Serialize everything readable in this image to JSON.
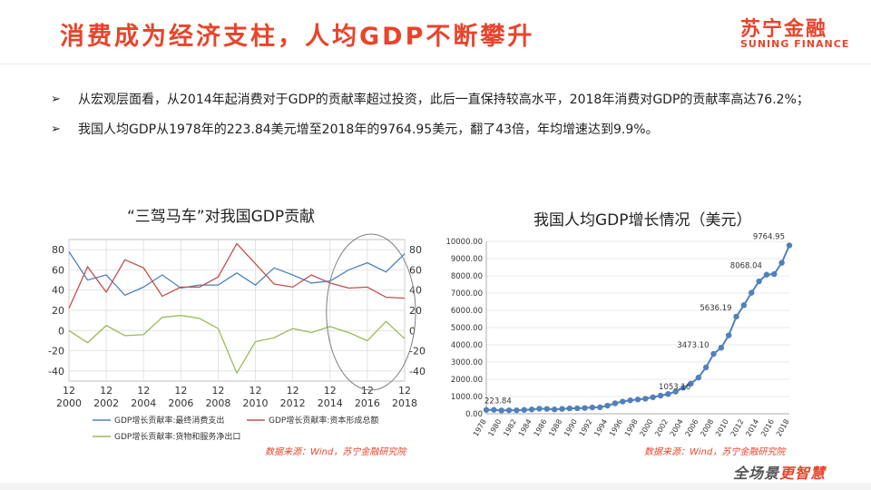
{
  "header": {
    "title": "消费成为经济支柱，人均GDP不断攀升",
    "logo_cn": "苏宁金融",
    "logo_en": "SUNING FINANCE"
  },
  "bullets": [
    "从宏观层面看，从2014年起消费对于GDP的贡献率超过投资，此后一直保持较高水平，2018年消费对GDP的贡献率高达76.2%；",
    "我国人均GDP从1978年的223.84美元增至2018年的9764.95美元，翻了43倍，年均增速达到9.9%。"
  ],
  "bullet_marker": "➢",
  "footer": {
    "slogan_a": "全场景",
    "slogan_b": "更智慧",
    "bottom_color": "#e8442b"
  },
  "chart_data": [
    {
      "type": "line",
      "title": "“三驾马车”对我国GDP贡献",
      "source": "数据来源：Wind，苏宁金融研究院",
      "x": [
        2000,
        2001,
        2002,
        2003,
        2004,
        2005,
        2006,
        2007,
        2008,
        2009,
        2010,
        2011,
        2012,
        2013,
        2014,
        2015,
        2016,
        2017,
        2018
      ],
      "x_tick_top": [
        "12",
        "12",
        "12",
        "12",
        "12",
        "12",
        "12",
        "12",
        "12",
        "12"
      ],
      "x_tick_bottom": [
        "2000",
        "2002",
        "2004",
        "2006",
        "2008",
        "2010",
        "2012",
        "2014",
        "2016",
        "2018"
      ],
      "yticks_left": [
        "80",
        "60",
        "40",
        "20",
        "0",
        "-20",
        "-40"
      ],
      "yticks_right": [
        "80",
        "60",
        "40",
        "20",
        "0",
        "-20",
        "-40"
      ],
      "ylim": [
        -50,
        90
      ],
      "grid": true,
      "legend_position": "bottom",
      "series": [
        {
          "name": "GDP增长贡献率:最终消费支出",
          "color": "#4f81bd",
          "values": [
            78,
            50,
            55,
            35,
            43,
            55,
            42,
            45,
            45,
            57,
            45,
            62,
            55,
            47,
            49,
            60,
            67,
            58,
            76
          ]
        },
        {
          "name": "GDP增长贡献率:资本形成总额",
          "color": "#c0504d",
          "values": [
            22,
            63,
            38,
            70,
            62,
            34,
            43,
            43,
            53,
            86,
            66,
            46,
            43,
            55,
            47,
            42,
            43,
            33,
            32
          ]
        },
        {
          "name": "GDP增长贡献率:货物和服务净出口",
          "color": "#9bbb59",
          "values": [
            0,
            -12,
            5,
            -5,
            -4,
            13,
            15,
            12,
            2,
            -42,
            -11,
            -7,
            2,
            -2,
            4,
            -2,
            -10,
            9,
            -8
          ]
        }
      ],
      "annotation": "ellipse highlighting 2014-2018"
    },
    {
      "type": "line",
      "title": "我国人均GDP增长情况（美元）",
      "source": "数据来源：Wind，苏宁金融研究院",
      "x_tick_labels": [
        "1978",
        "1980",
        "1982",
        "1984",
        "1986",
        "1988",
        "1990",
        "1992",
        "1994",
        "1996",
        "1998",
        "2000",
        "2002",
        "2004",
        "2006",
        "2008",
        "2010",
        "2012",
        "2014",
        "2016",
        "2018"
      ],
      "yticks": [
        "10000.00",
        "9000.00",
        "8000.00",
        "7000.00",
        "6000.00",
        "5000.00",
        "4000.00",
        "3000.00",
        "2000.00",
        "1000.00",
        "0.00"
      ],
      "ylim": [
        0,
        10000
      ],
      "grid": true,
      "color": "#4f81bd",
      "years": [
        1978,
        1979,
        1980,
        1981,
        1982,
        1983,
        1984,
        1985,
        1986,
        1987,
        1988,
        1989,
        1990,
        1991,
        1992,
        1993,
        1994,
        1995,
        1996,
        1997,
        1998,
        1999,
        2000,
        2001,
        2002,
        2003,
        2004,
        2005,
        2006,
        2007,
        2008,
        2009,
        2010,
        2011,
        2012,
        2013,
        2014,
        2015,
        2016,
        2017,
        2018
      ],
      "values": [
        223.84,
        228,
        194,
        203,
        203,
        224,
        250,
        294,
        282,
        251,
        283,
        310,
        318,
        333,
        366,
        377,
        473,
        609,
        709,
        781,
        828,
        873,
        959,
        1053.16,
        1148,
        1288,
        1508,
        1753,
        2099,
        2693,
        3473.1,
        3832,
        4550,
        5636.19,
        6300,
        7020,
        7683,
        8068.04,
        8102,
        8759,
        9764.95
      ],
      "data_labels": [
        {
          "year": 1978,
          "text": "223.84"
        },
        {
          "year": 2001,
          "text": "1053.16"
        },
        {
          "year": 2008,
          "text": "3473.10"
        },
        {
          "year": 2011,
          "text": "5636.19"
        },
        {
          "year": 2015,
          "text": "8068.04"
        },
        {
          "year": 2018,
          "text": "9764.95"
        }
      ]
    }
  ]
}
